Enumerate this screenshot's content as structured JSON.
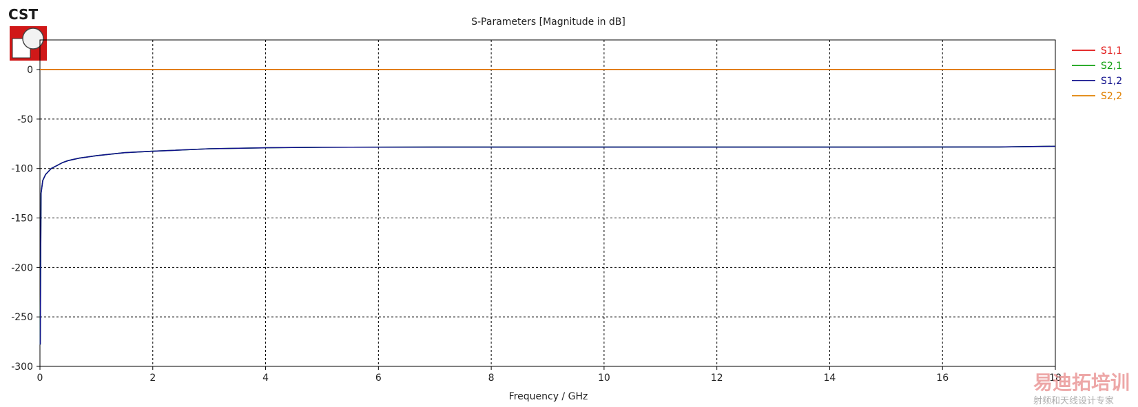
{
  "logo": {
    "text": "CST"
  },
  "watermark": {
    "line1": "易迪拓培训",
    "line2": "射频和天线设计专家"
  },
  "colors": {
    "S11": "#e01010",
    "S21": "#10a010",
    "S12": "#10108c",
    "S22": "#e08000",
    "grid": "#000000",
    "axis": "#000000"
  },
  "chart_data": {
    "type": "line",
    "title": "S-Parameters [Magnitude in dB]",
    "xlabel": "Frequency / GHz",
    "ylabel": "",
    "xlim": [
      0,
      18
    ],
    "ylim": [
      -300,
      30
    ],
    "xticks": [
      0,
      2,
      4,
      6,
      8,
      10,
      12,
      14,
      16,
      18
    ],
    "yticks": [
      0,
      -50,
      -100,
      -150,
      -200,
      -250,
      -300
    ],
    "grid": true,
    "legend_position": "right",
    "series": [
      {
        "name": "S1,1",
        "color_key": "S11",
        "x": [
          0,
          18
        ],
        "y": [
          0,
          0
        ]
      },
      {
        "name": "S2,1",
        "color_key": "S21",
        "x": [
          0.005,
          0.02,
          0.05,
          0.1,
          0.15,
          0.2,
          0.3,
          0.4,
          0.5,
          0.7,
          1.0,
          1.5,
          2.0,
          3.0,
          4.0,
          5.0,
          7.0,
          10.0,
          14.0,
          17.0,
          18.0
        ],
        "y": [
          -278,
          -125,
          -112,
          -106,
          -103,
          -100,
          -97,
          -94,
          -92,
          -89.5,
          -87,
          -84,
          -82.5,
          -80,
          -79,
          -78.5,
          -78.3,
          -78.3,
          -78.3,
          -78.2,
          -77.5
        ]
      },
      {
        "name": "S1,2",
        "color_key": "S12",
        "x": [
          0.005,
          0.02,
          0.05,
          0.1,
          0.15,
          0.2,
          0.3,
          0.4,
          0.5,
          0.7,
          1.0,
          1.5,
          2.0,
          3.0,
          4.0,
          5.0,
          7.0,
          10.0,
          14.0,
          17.0,
          18.0
        ],
        "y": [
          -278,
          -125,
          -112,
          -106,
          -103,
          -100,
          -97,
          -94,
          -92,
          -89.5,
          -87,
          -84,
          -82.5,
          -80,
          -79,
          -78.5,
          -78.3,
          -78.3,
          -78.3,
          -78.2,
          -77.5
        ]
      },
      {
        "name": "S2,2",
        "color_key": "S22",
        "x": [
          0,
          18
        ],
        "y": [
          0,
          0
        ]
      }
    ]
  }
}
